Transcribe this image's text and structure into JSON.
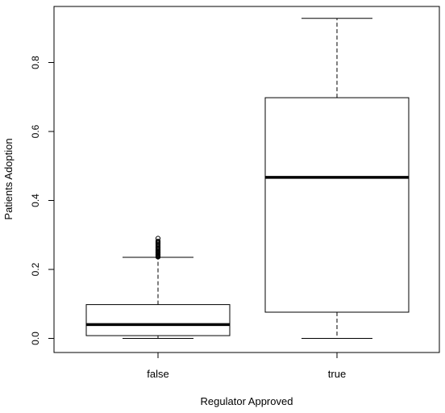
{
  "chart_data": {
    "type": "boxplot",
    "title": "",
    "xlabel": "Regulator Approved",
    "ylabel": "Patients Adoption",
    "ylim": [
      -0.03,
      0.95
    ],
    "yticks": [
      0.0,
      0.2,
      0.4,
      0.6,
      0.8
    ],
    "ytick_labels": [
      "0.0",
      "0.2",
      "0.4",
      "0.6",
      "0.8"
    ],
    "grid": false,
    "legend": "none",
    "categories": [
      "false",
      "true"
    ],
    "boxes": [
      {
        "category": "false",
        "whisker_low": 0.0,
        "q1": 0.008,
        "median": 0.04,
        "q3": 0.098,
        "whisker_high": 0.235,
        "outliers": [
          0.236,
          0.238,
          0.24,
          0.242,
          0.244,
          0.246,
          0.248,
          0.25,
          0.252,
          0.255,
          0.258,
          0.261,
          0.264,
          0.267,
          0.27,
          0.273,
          0.276,
          0.279,
          0.282,
          0.29
        ]
      },
      {
        "category": "true",
        "whisker_low": 0.0,
        "q1": 0.076,
        "median": 0.467,
        "q3": 0.698,
        "whisker_high": 0.928,
        "outliers": []
      }
    ]
  }
}
